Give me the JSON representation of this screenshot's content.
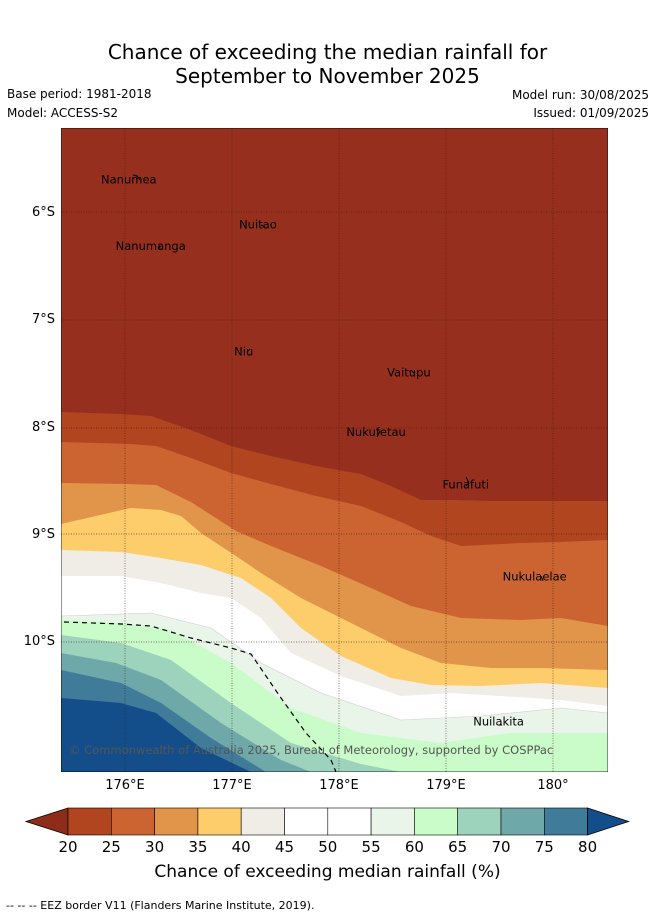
{
  "title": {
    "line1": "Chance of exceeding the median rainfall for",
    "line2": "September to November 2025"
  },
  "meta": {
    "base_period": "Base period: 1981-2018",
    "model": "Model: ACCESS-S2",
    "model_run": "Model run: 30/08/2025",
    "issued": "Issued: 01/09/2025"
  },
  "map": {
    "lon_range": [
      175.5,
      180.5
    ],
    "lat_range": [
      -11.2,
      -5.2
    ],
    "lat_ticks": [
      {
        "value": -6,
        "label": "6°S"
      },
      {
        "value": -7,
        "label": "7°S"
      },
      {
        "value": -8,
        "label": "8°S"
      },
      {
        "value": -9,
        "label": "9°S"
      },
      {
        "value": -10,
        "label": "10°S"
      }
    ],
    "lon_ticks": [
      {
        "value": 176,
        "label": "176°E"
      },
      {
        "value": 177,
        "label": "177°E"
      },
      {
        "value": 178,
        "label": "178°E"
      },
      {
        "value": 179,
        "label": "179°E"
      },
      {
        "value": 180,
        "label": "180°"
      }
    ],
    "islands": [
      {
        "name": "Nanumea",
        "lon": 176.12,
        "lat": -5.68
      },
      {
        "name": "Nuitao",
        "lon": 177.3,
        "lat": -6.1
      },
      {
        "name": "Nanumanga",
        "lon": 176.32,
        "lat": -6.3
      },
      {
        "name": "Niu",
        "lon": 177.17,
        "lat": -7.28
      },
      {
        "name": "Vaitupu",
        "lon": 178.68,
        "lat": -7.48
      },
      {
        "name": "Nukufetau",
        "lon": 178.38,
        "lat": -8.03
      },
      {
        "name": "Funafuti",
        "lon": 179.2,
        "lat": -8.52
      },
      {
        "name": "Nukulaelae",
        "lon": 179.83,
        "lat": -9.38
      },
      {
        "name": "Nuilakita",
        "lon": 179.5,
        "lat": -10.73
      }
    ],
    "copyright": "© Commonwealth of Australia 2025, Bureau of Meteorology, supported by COSPPac"
  },
  "colorbar": {
    "ticks": [
      "20",
      "25",
      "30",
      "35",
      "40",
      "45",
      "50",
      "55",
      "60",
      "65",
      "70",
      "75",
      "80"
    ],
    "colors": {
      "lt20": "#8e2c1a",
      "20-25": "#b0451f",
      "25-30": "#cc6432",
      "30-35": "#e0954a",
      "35-40": "#fdcd6b",
      "40-45": "#f0ece6",
      "45-50": "#ffffff",
      "50-55": "#ffffff",
      "55-60": "#e8f5e8",
      "60-65": "#c9fcc9",
      "65-70": "#9dd2bc",
      "70-75": "#6fa8a8",
      "75-80": "#417b9a",
      "gt80": "#134e8a"
    },
    "title": "Chance of exceeding median rainfall (%)"
  },
  "legend_note": "-- -- -- EEZ border V11 (Flanders Marine Institute, 2019)."
}
